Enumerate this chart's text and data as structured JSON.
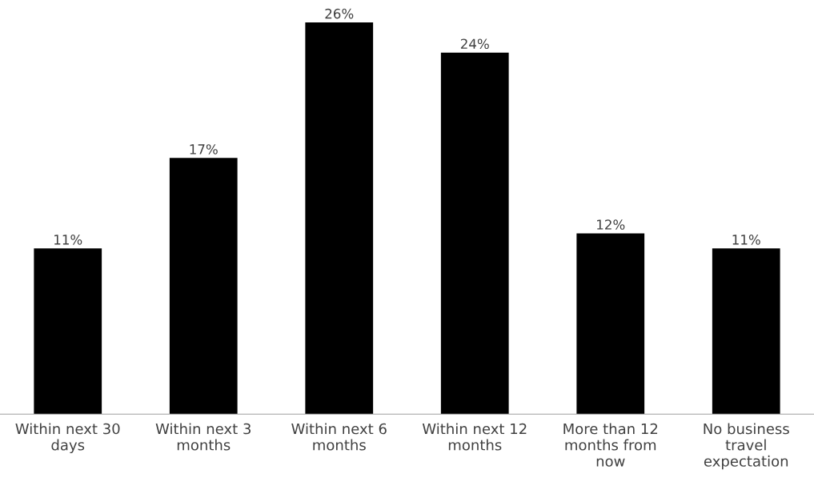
{
  "chart_data": {
    "type": "bar",
    "categories": [
      "Within next 30 days",
      "Within next 3 months",
      "Within next 6 months",
      "Within next 12 months",
      "More than 12 months from now",
      "No business travel expectation"
    ],
    "values": [
      11,
      17,
      26,
      24,
      12,
      11
    ],
    "value_labels": [
      "11%",
      "17%",
      "26%",
      "24%",
      "12%",
      "11%"
    ],
    "color": "#000000",
    "grid": false,
    "legend": false
  }
}
